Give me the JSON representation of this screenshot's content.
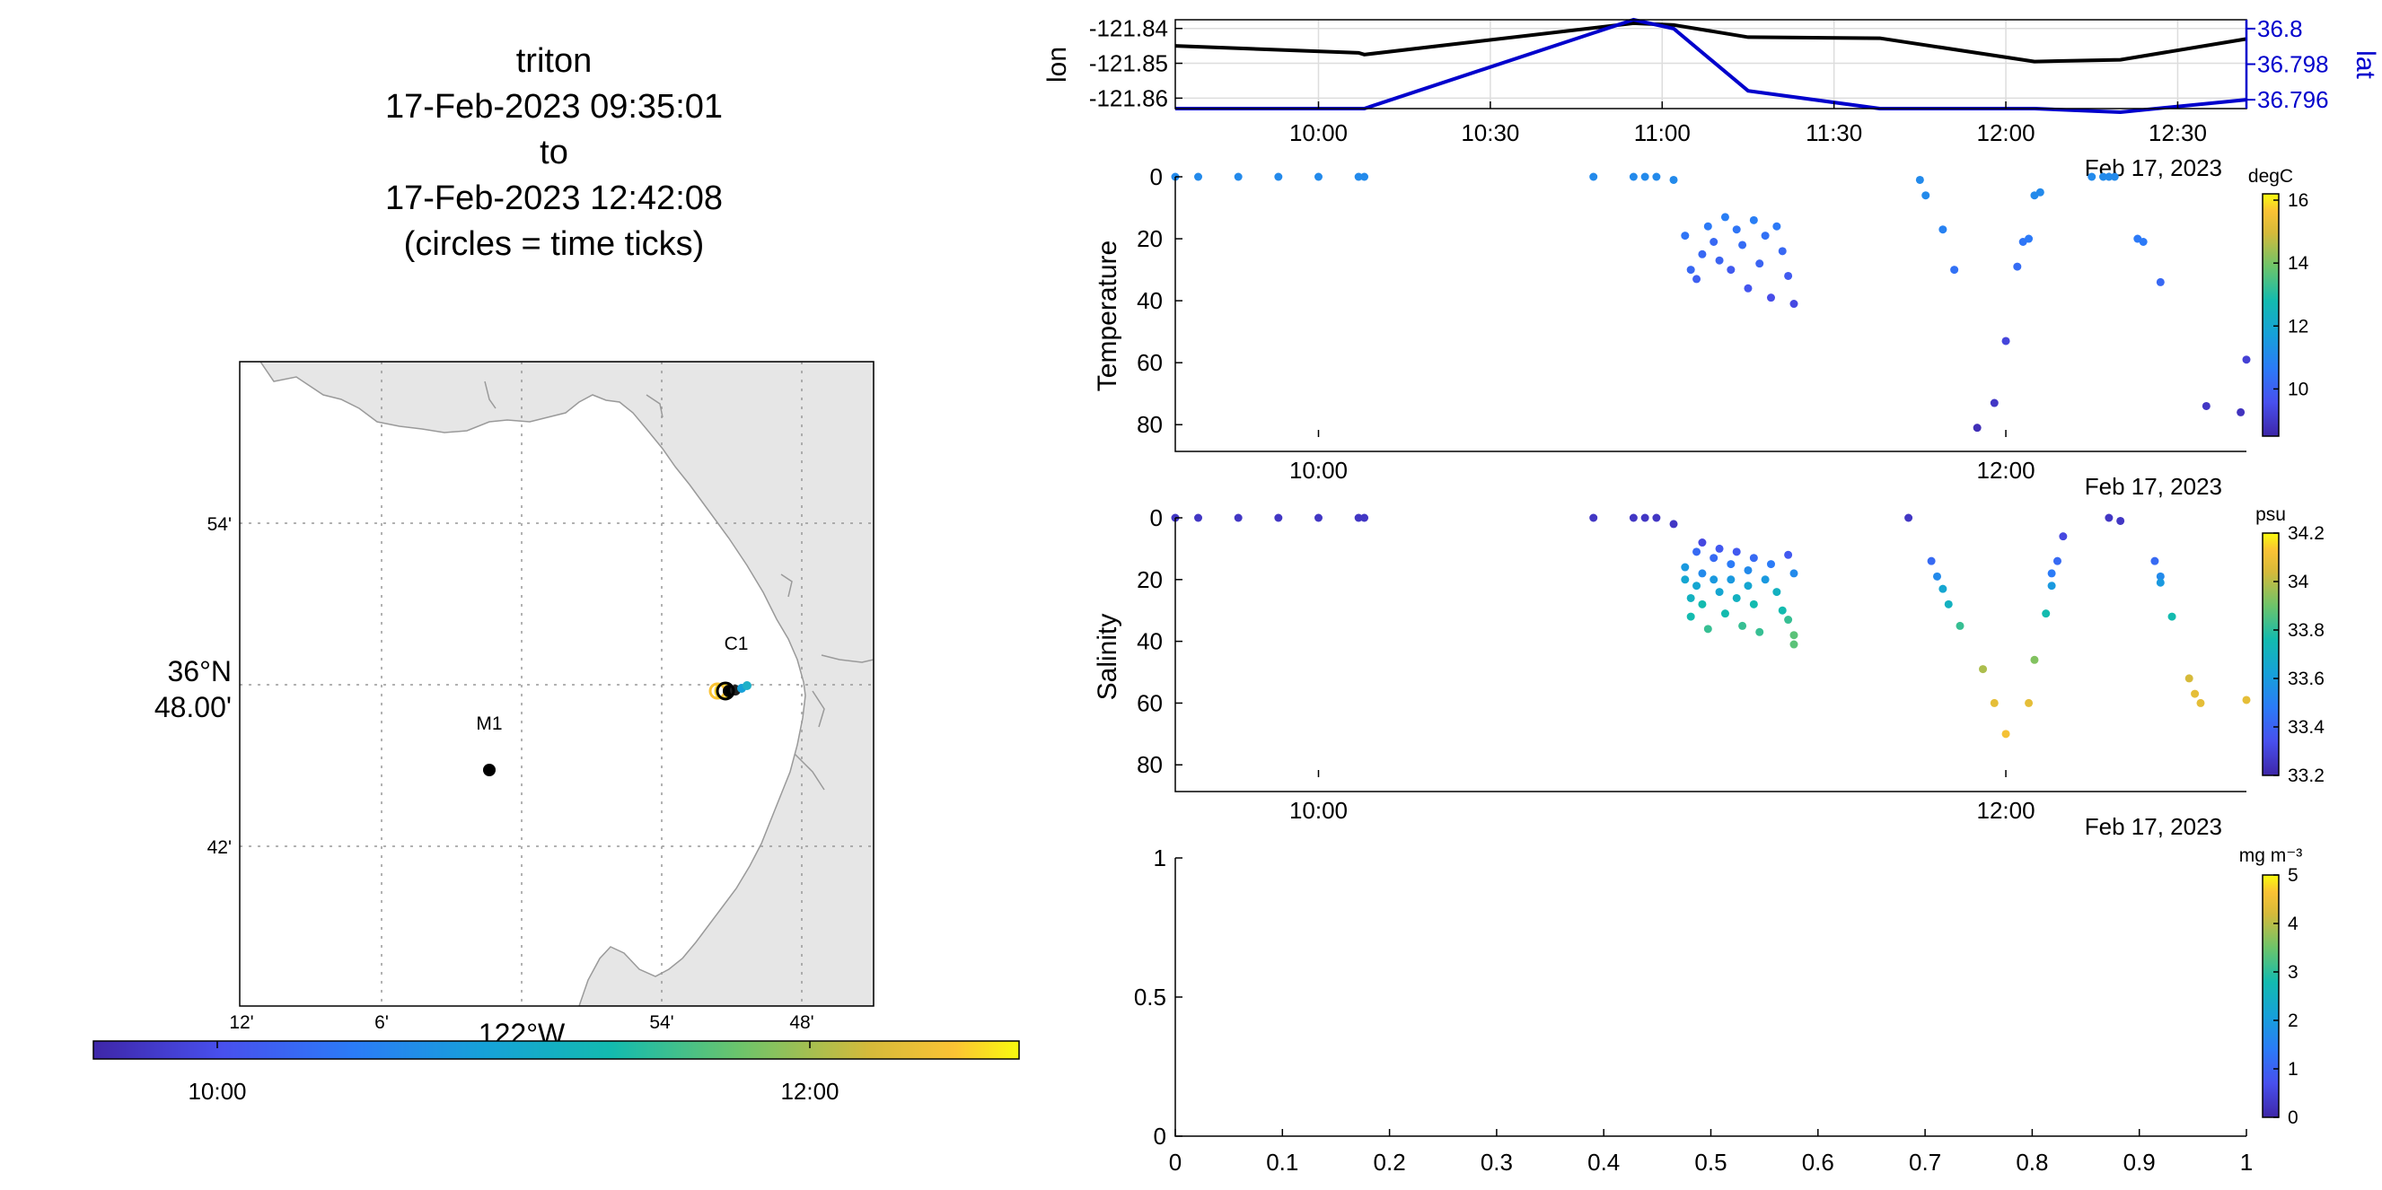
{
  "title_lines": [
    "triton",
    "17-Feb-2023 09:35:01",
    "to",
    "17-Feb-2023 12:42:08",
    "(circles = time ticks)"
  ],
  "colors": {
    "lon_line": "#000000",
    "lat_line": "#0000cc",
    "land": "#e6e6e6",
    "grid": "#999999"
  },
  "map": {
    "lat_ticks": [
      "54'",
      "42'"
    ],
    "lat_center_label": [
      "36°N",
      "48.00'"
    ],
    "lon_ticks": [
      "12'",
      "6'",
      "54'",
      "48'"
    ],
    "lon_center_label": "122°W",
    "stations": [
      {
        "name": "C1",
        "lon": -121.84,
        "lat": 36.8
      },
      {
        "name": "M1",
        "lon": -122.02,
        "lat": 36.747
      }
    ],
    "colorbar_ticks": [
      "10:00",
      "12:00"
    ]
  },
  "chart_data": [
    {
      "type": "line",
      "x": [
        "09:35",
        "10:07",
        "10:08",
        "10:55",
        "11:02",
        "11:15",
        "11:38",
        "12:05",
        "12:20",
        "12:42"
      ],
      "series": [
        {
          "name": "lon",
          "values": [
            -121.845,
            -121.847,
            -121.8475,
            -121.8385,
            -121.839,
            -121.8425,
            -121.8428,
            -121.8495,
            -121.849,
            -121.843
          ]
        },
        {
          "name": "lat",
          "values": [
            36.7955,
            36.7955,
            36.7955,
            36.8005,
            36.8,
            36.7965,
            36.7955,
            36.7955,
            36.7953,
            36.796
          ]
        }
      ],
      "xlim": [
        "09:35",
        "12:42"
      ],
      "ylim_left": [
        -121.863,
        -121.8375
      ],
      "ylim_right": [
        36.7955,
        36.8005
      ],
      "x_ticks": [
        "10:00",
        "10:30",
        "11:00",
        "11:30",
        "12:00",
        "12:30"
      ],
      "y_ticks_left": [
        "-121.84",
        "-121.85",
        "-121.86"
      ],
      "y_ticks_right": [
        "36.8",
        "36.798",
        "36.796"
      ],
      "ylabel": "lon",
      "ylabel_right": "lat",
      "date_label": "Feb 17, 2023",
      "grid": true
    },
    {
      "type": "scatter",
      "ylabel": "Temperature",
      "xlim": [
        "09:35",
        "12:42"
      ],
      "ylim": [
        84,
        0
      ],
      "x_ticks": [
        "10:00",
        "12:00"
      ],
      "y_ticks": [
        "0",
        "20",
        "40",
        "60",
        "80"
      ],
      "date_label": "Feb 17, 2023",
      "colorbar": {
        "unit": "degC",
        "range": [
          8.5,
          16.2
        ],
        "ticks": [
          "16",
          "14",
          "12",
          "10"
        ]
      },
      "points": [
        {
          "t": "09:35",
          "d": 0,
          "v": 10.8
        },
        {
          "t": "09:39",
          "d": 0,
          "v": 10.8
        },
        {
          "t": "09:46",
          "d": 0,
          "v": 10.8
        },
        {
          "t": "09:53",
          "d": 0,
          "v": 10.8
        },
        {
          "t": "10:00",
          "d": 0,
          "v": 10.8
        },
        {
          "t": "10:07",
          "d": 0,
          "v": 10.8
        },
        {
          "t": "10:08",
          "d": 0,
          "v": 10.8
        },
        {
          "t": "10:48",
          "d": 0,
          "v": 10.8
        },
        {
          "t": "10:55",
          "d": 0,
          "v": 10.8
        },
        {
          "t": "10:57",
          "d": 0,
          "v": 10.8
        },
        {
          "t": "10:59",
          "d": 0,
          "v": 10.8
        },
        {
          "t": "11:02",
          "d": 1,
          "v": 10.8
        },
        {
          "t": "11:04",
          "d": 19,
          "v": 10.3
        },
        {
          "t": "11:05",
          "d": 30,
          "v": 10.0
        },
        {
          "t": "11:06",
          "d": 33,
          "v": 9.8
        },
        {
          "t": "11:07",
          "d": 25,
          "v": 10.0
        },
        {
          "t": "11:08",
          "d": 16,
          "v": 10.4
        },
        {
          "t": "11:09",
          "d": 21,
          "v": 10.0
        },
        {
          "t": "11:10",
          "d": 27,
          "v": 9.9
        },
        {
          "t": "11:11",
          "d": 13,
          "v": 10.5
        },
        {
          "t": "11:12",
          "d": 30,
          "v": 9.7
        },
        {
          "t": "11:13",
          "d": 17,
          "v": 10.3
        },
        {
          "t": "11:14",
          "d": 22,
          "v": 10.1
        },
        {
          "t": "11:15",
          "d": 36,
          "v": 9.6
        },
        {
          "t": "11:16",
          "d": 14,
          "v": 10.5
        },
        {
          "t": "11:17",
          "d": 28,
          "v": 9.9
        },
        {
          "t": "11:18",
          "d": 19,
          "v": 10.2
        },
        {
          "t": "11:19",
          "d": 39,
          "v": 9.4
        },
        {
          "t": "11:20",
          "d": 16,
          "v": 10.4
        },
        {
          "t": "11:21",
          "d": 24,
          "v": 10.0
        },
        {
          "t": "11:22",
          "d": 32,
          "v": 9.7
        },
        {
          "t": "11:23",
          "d": 41,
          "v": 9.3
        },
        {
          "t": "11:45",
          "d": 1,
          "v": 10.8
        },
        {
          "t": "11:46",
          "d": 6,
          "v": 10.8
        },
        {
          "t": "11:49",
          "d": 17,
          "v": 10.6
        },
        {
          "t": "11:51",
          "d": 30,
          "v": 10.2
        },
        {
          "t": "11:58",
          "d": 73,
          "v": 8.9
        },
        {
          "t": "12:00",
          "d": 53,
          "v": 9.2
        },
        {
          "t": "12:02",
          "d": 29,
          "v": 10.1
        },
        {
          "t": "12:03",
          "d": 21,
          "v": 10.3
        },
        {
          "t": "12:04",
          "d": 20,
          "v": 10.4
        },
        {
          "t": "12:05",
          "d": 6,
          "v": 10.8
        },
        {
          "t": "12:06",
          "d": 5,
          "v": 10.8
        },
        {
          "t": "11:55",
          "d": 81,
          "v": 8.7
        },
        {
          "t": "12:15",
          "d": 0,
          "v": 10.8
        },
        {
          "t": "12:17",
          "d": 0,
          "v": 10.8
        },
        {
          "t": "12:18",
          "d": 0,
          "v": 10.8
        },
        {
          "t": "12:19",
          "d": 0,
          "v": 10.8
        },
        {
          "t": "12:23",
          "d": 20,
          "v": 10.4
        },
        {
          "t": "12:24",
          "d": 21,
          "v": 10.4
        },
        {
          "t": "12:27",
          "d": 34,
          "v": 10.0
        },
        {
          "t": "12:35",
          "d": 74,
          "v": 8.9
        },
        {
          "t": "12:41",
          "d": 76,
          "v": 8.8
        },
        {
          "t": "12:42",
          "d": 59,
          "v": 9.1
        }
      ]
    },
    {
      "type": "scatter",
      "ylabel": "Salinity",
      "xlim": [
        "09:35",
        "12:42"
      ],
      "ylim": [
        84,
        0
      ],
      "x_ticks": [
        "10:00",
        "12:00"
      ],
      "y_ticks": [
        "0",
        "20",
        "40",
        "60",
        "80"
      ],
      "date_label": "Feb 17, 2023",
      "colorbar": {
        "unit": "psu",
        "range": [
          33.2,
          34.2
        ],
        "ticks": [
          "34.2",
          "34",
          "33.8",
          "33.6",
          "33.4",
          "33.2"
        ]
      },
      "points": [
        {
          "t": "09:35",
          "d": 0,
          "v": 33.25
        },
        {
          "t": "09:39",
          "d": 0,
          "v": 33.25
        },
        {
          "t": "09:46",
          "d": 0,
          "v": 33.25
        },
        {
          "t": "09:53",
          "d": 0,
          "v": 33.25
        },
        {
          "t": "10:00",
          "d": 0,
          "v": 33.25
        },
        {
          "t": "10:07",
          "d": 0,
          "v": 33.25
        },
        {
          "t": "10:08",
          "d": 0,
          "v": 33.25
        },
        {
          "t": "10:48",
          "d": 0,
          "v": 33.25
        },
        {
          "t": "10:55",
          "d": 0,
          "v": 33.25
        },
        {
          "t": "10:57",
          "d": 0,
          "v": 33.25
        },
        {
          "t": "10:59",
          "d": 0,
          "v": 33.25
        },
        {
          "t": "11:02",
          "d": 2,
          "v": 33.25
        },
        {
          "t": "11:04",
          "d": 16,
          "v": 33.55
        },
        {
          "t": "11:04",
          "d": 20,
          "v": 33.6
        },
        {
          "t": "11:05",
          "d": 26,
          "v": 33.65
        },
        {
          "t": "11:05",
          "d": 32,
          "v": 33.7
        },
        {
          "t": "11:06",
          "d": 11,
          "v": 33.4
        },
        {
          "t": "11:06",
          "d": 22,
          "v": 33.6
        },
        {
          "t": "11:07",
          "d": 8,
          "v": 33.3
        },
        {
          "t": "11:07",
          "d": 18,
          "v": 33.5
        },
        {
          "t": "11:07",
          "d": 28,
          "v": 33.7
        },
        {
          "t": "11:08",
          "d": 36,
          "v": 33.75
        },
        {
          "t": "11:09",
          "d": 13,
          "v": 33.4
        },
        {
          "t": "11:09",
          "d": 20,
          "v": 33.55
        },
        {
          "t": "11:10",
          "d": 10,
          "v": 33.35
        },
        {
          "t": "11:10",
          "d": 24,
          "v": 33.6
        },
        {
          "t": "11:11",
          "d": 31,
          "v": 33.7
        },
        {
          "t": "11:12",
          "d": 15,
          "v": 33.45
        },
        {
          "t": "11:12",
          "d": 20,
          "v": 33.55
        },
        {
          "t": "11:13",
          "d": 11,
          "v": 33.35
        },
        {
          "t": "11:13",
          "d": 26,
          "v": 33.65
        },
        {
          "t": "11:14",
          "d": 35,
          "v": 33.75
        },
        {
          "t": "11:15",
          "d": 17,
          "v": 33.5
        },
        {
          "t": "11:15",
          "d": 22,
          "v": 33.6
        },
        {
          "t": "11:16",
          "d": 13,
          "v": 33.4
        },
        {
          "t": "11:16",
          "d": 28,
          "v": 33.7
        },
        {
          "t": "11:17",
          "d": 37,
          "v": 33.75
        },
        {
          "t": "11:18",
          "d": 20,
          "v": 33.55
        },
        {
          "t": "11:19",
          "d": 15,
          "v": 33.45
        },
        {
          "t": "11:20",
          "d": 24,
          "v": 33.65
        },
        {
          "t": "11:21",
          "d": 30,
          "v": 33.7
        },
        {
          "t": "11:22",
          "d": 12,
          "v": 33.35
        },
        {
          "t": "11:22",
          "d": 33,
          "v": 33.75
        },
        {
          "t": "11:23",
          "d": 38,
          "v": 33.8
        },
        {
          "t": "11:23",
          "d": 41,
          "v": 33.8
        },
        {
          "t": "11:23",
          "d": 18,
          "v": 33.5
        },
        {
          "t": "11:43",
          "d": 0,
          "v": 33.25
        },
        {
          "t": "11:47",
          "d": 14,
          "v": 33.4
        },
        {
          "t": "11:48",
          "d": 19,
          "v": 33.5
        },
        {
          "t": "11:49",
          "d": 23,
          "v": 33.6
        },
        {
          "t": "11:50",
          "d": 28,
          "v": 33.65
        },
        {
          "t": "11:52",
          "d": 35,
          "v": 33.75
        },
        {
          "t": "11:56",
          "d": 49,
          "v": 33.9
        },
        {
          "t": "11:58",
          "d": 60,
          "v": 34.0
        },
        {
          "t": "12:00",
          "d": 70,
          "v": 34.05
        },
        {
          "t": "12:04",
          "d": 60,
          "v": 34.0
        },
        {
          "t": "12:05",
          "d": 46,
          "v": 33.85
        },
        {
          "t": "12:07",
          "d": 31,
          "v": 33.7
        },
        {
          "t": "12:08",
          "d": 22,
          "v": 33.55
        },
        {
          "t": "12:08",
          "d": 18,
          "v": 33.45
        },
        {
          "t": "12:09",
          "d": 14,
          "v": 33.4
        },
        {
          "t": "12:10",
          "d": 6,
          "v": 33.3
        },
        {
          "t": "12:18",
          "d": 0,
          "v": 33.25
        },
        {
          "t": "12:20",
          "d": 1,
          "v": 33.25
        },
        {
          "t": "12:26",
          "d": 14,
          "v": 33.4
        },
        {
          "t": "12:27",
          "d": 19,
          "v": 33.5
        },
        {
          "t": "12:27",
          "d": 21,
          "v": 33.55
        },
        {
          "t": "12:29",
          "d": 32,
          "v": 33.7
        },
        {
          "t": "12:32",
          "d": 52,
          "v": 33.95
        },
        {
          "t": "12:33",
          "d": 57,
          "v": 34.0
        },
        {
          "t": "12:34",
          "d": 60,
          "v": 34.0
        },
        {
          "t": "12:42",
          "d": 59,
          "v": 34.0
        }
      ]
    },
    {
      "type": "scatter",
      "ylabel": "",
      "xlim": [
        0,
        1
      ],
      "ylim": [
        0,
        1
      ],
      "x_ticks": [
        "0",
        "0.1",
        "0.2",
        "0.3",
        "0.4",
        "0.5",
        "0.6",
        "0.7",
        "0.8",
        "0.9",
        "1"
      ],
      "y_ticks": [
        "1",
        "0.5",
        "0"
      ],
      "colorbar": {
        "unit": "mg m⁻³",
        "range": [
          0,
          5
        ],
        "ticks": [
          "5",
          "4",
          "3",
          "2",
          "1",
          "0"
        ]
      },
      "points": []
    }
  ]
}
